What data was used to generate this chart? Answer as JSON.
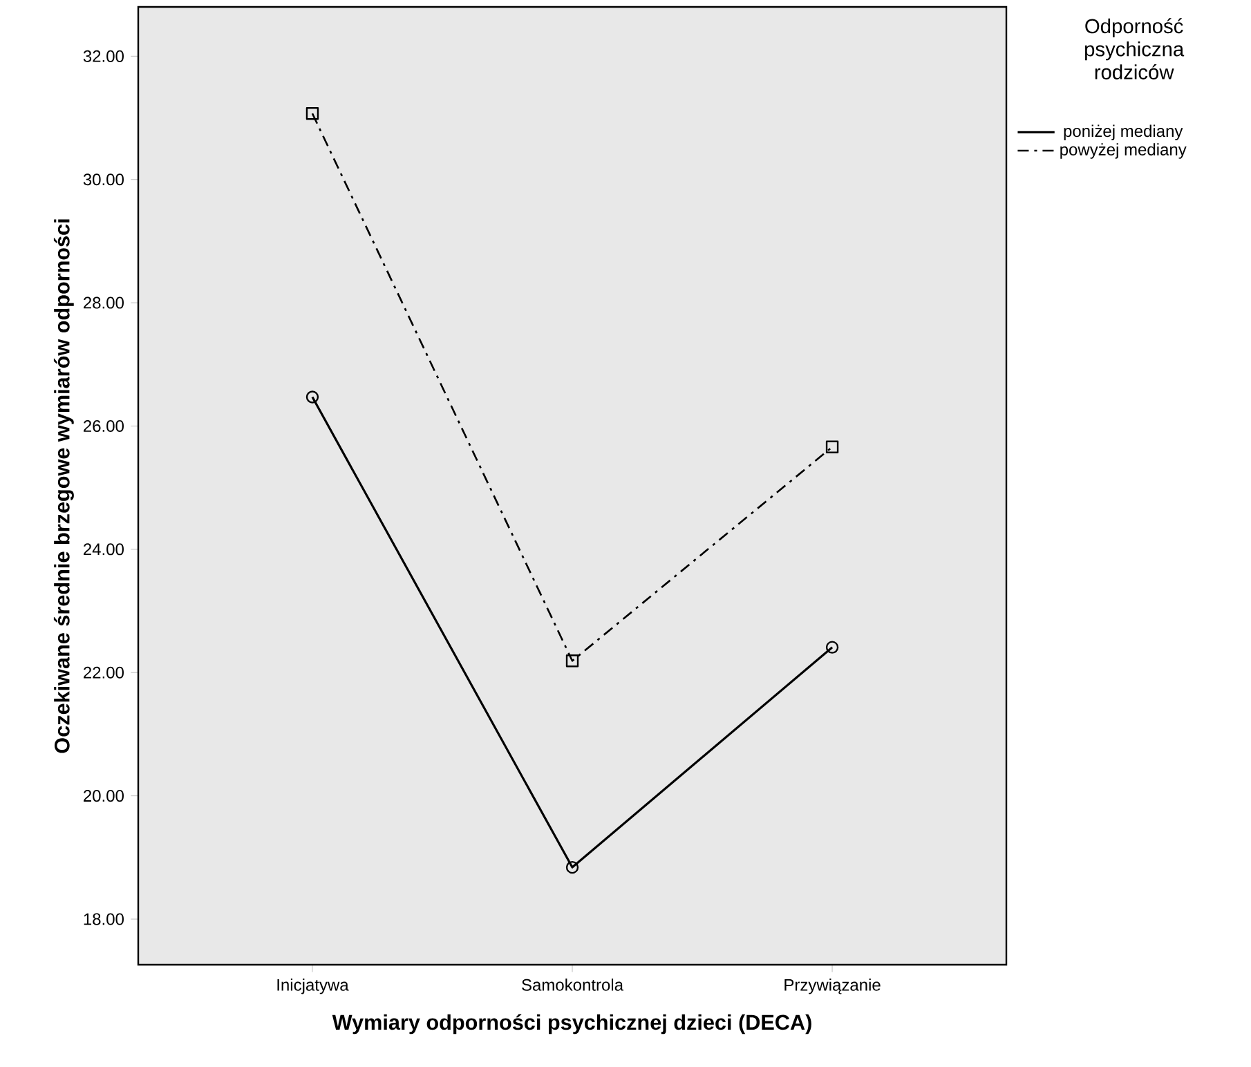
{
  "chart_data": {
    "type": "line",
    "xlabel": "Wymiary odporności psychicznej dzieci (DECA)",
    "ylabel": "Oczekiwane średnie brzegowe wymiarów odporności",
    "legend_title": "Odporność psychiczna rodziców",
    "categories": [
      "Inicjatywa",
      "Samokontrola",
      "Przywiązanie"
    ],
    "series": [
      {
        "name": "poniżej mediany",
        "color": "#000000",
        "values": [
          26.47,
          18.84,
          22.41
        ],
        "marker": "circle",
        "line_style": "solid"
      },
      {
        "name": "powyżej mediany",
        "color": "#000000",
        "values": [
          31.07,
          22.19,
          25.66
        ],
        "marker": "square",
        "line_style": "dashdot"
      }
    ],
    "ylim": [
      17.26,
      32.8
    ],
    "yticks": [
      {
        "value": 18,
        "label": "18.00"
      },
      {
        "value": 20,
        "label": "20.00"
      },
      {
        "value": 22,
        "label": "22.00"
      },
      {
        "value": 24,
        "label": "24.00"
      },
      {
        "value": 26,
        "label": "26.00"
      },
      {
        "value": 28,
        "label": "28.00"
      },
      {
        "value": 30,
        "label": "30.00"
      },
      {
        "value": 32,
        "label": "32.00"
      }
    ],
    "grid": false,
    "legend": "top right"
  }
}
